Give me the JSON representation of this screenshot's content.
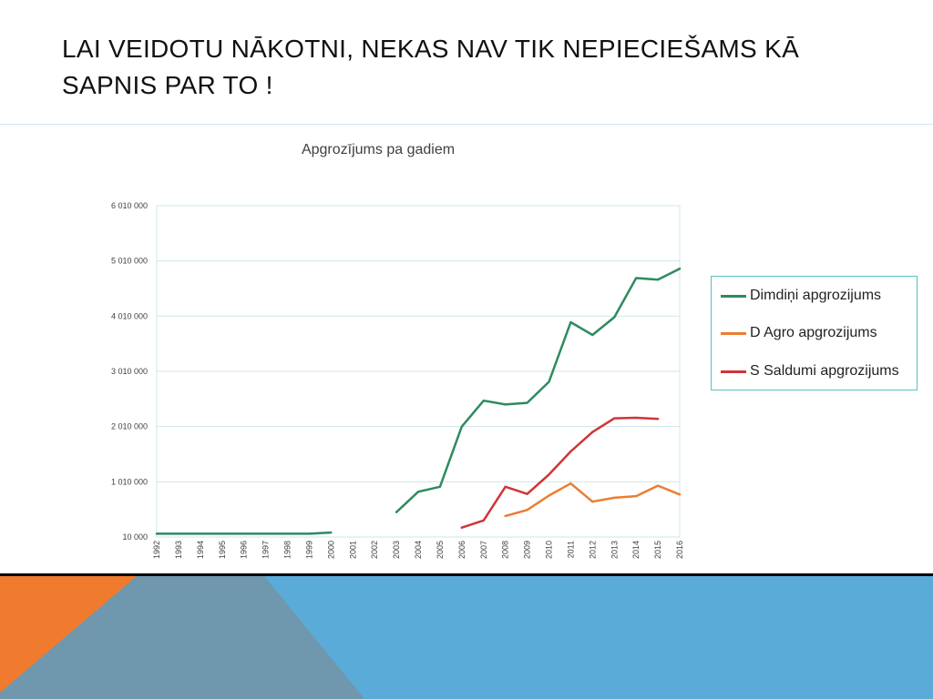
{
  "slide": {
    "title": " LAI VEIDOTU NĀKOTNI, NEKAS NAV TIK NEPIECIEŠAMS KĀ\nSAPNIS PAR TO !"
  },
  "chart_data": {
    "type": "line",
    "title": "Apgrozījums pa gadiem",
    "xlabel": "",
    "ylabel": "",
    "categories": [
      "1992",
      "1993",
      "1994",
      "1995",
      "1996",
      "1997",
      "1998",
      "1999",
      "2000",
      "2001",
      "2002",
      "2003",
      "2004",
      "2005",
      "2006",
      "2007",
      "2008",
      "2009",
      "2010",
      "2011",
      "2012",
      "2013",
      "2014",
      "2015",
      "2016"
    ],
    "y_ticks": [
      10000,
      1010000,
      2010000,
      3010000,
      4010000,
      5010000,
      6010000
    ],
    "y_tick_labels": [
      "10 000",
      "1 010 000",
      "2 010 000",
      "3 010 000",
      "4 010 000",
      "5 010 000",
      "6 010 000"
    ],
    "ylim": [
      10000,
      6010000
    ],
    "grid": true,
    "legend_position": "right",
    "series": [
      {
        "name": "Dimdiņi apgrozijums",
        "color": "#2e8b5f",
        "values": [
          70000,
          70000,
          70000,
          70000,
          70000,
          70000,
          70000,
          70000,
          90000,
          null,
          null,
          460000,
          830000,
          920000,
          2010000,
          2480000,
          2410000,
          2440000,
          2820000,
          3900000,
          3670000,
          3990000,
          4700000,
          4670000,
          4870000
        ]
      },
      {
        "name": "D Agro apgrozijums",
        "color": "#ec7d31",
        "values": [
          null,
          null,
          null,
          null,
          null,
          null,
          null,
          null,
          null,
          null,
          null,
          null,
          null,
          null,
          null,
          null,
          390000,
          500000,
          760000,
          980000,
          650000,
          720000,
          750000,
          940000,
          780000
        ]
      },
      {
        "name": "S Saldumi apgrozijums",
        "color": "#d13438",
        "values": [
          null,
          null,
          null,
          null,
          null,
          null,
          null,
          null,
          null,
          null,
          null,
          null,
          null,
          null,
          180000,
          310000,
          920000,
          790000,
          1140000,
          1560000,
          1910000,
          2160000,
          2170000,
          2150000,
          null
        ]
      }
    ]
  },
  "footer": {
    "colors": {
      "orange": "#f07a2e",
      "slate": "#6f97ad",
      "blue": "#5aabd8"
    }
  }
}
